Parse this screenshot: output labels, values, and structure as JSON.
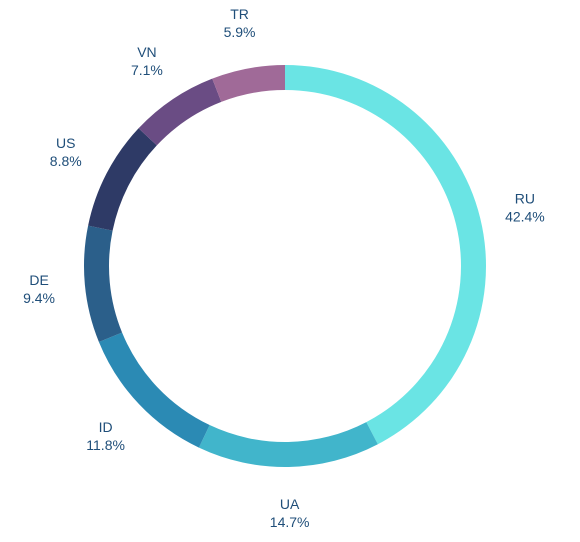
{
  "chart_data": {
    "type": "pie",
    "style": "donut",
    "title": "",
    "categories": [
      "RU",
      "UA",
      "ID",
      "DE",
      "US",
      "VN",
      "TR"
    ],
    "values": [
      42.4,
      14.7,
      11.8,
      9.4,
      8.8,
      7.1,
      5.9
    ],
    "value_labels": [
      "42.4%",
      "14.7%",
      "11.8%",
      "9.4%",
      "8.8%",
      "7.1%",
      "5.9%"
    ],
    "colors": [
      "#6ae4e4",
      "#41b5cb",
      "#2b8ab4",
      "#2b5f8a",
      "#2e3a66",
      "#6a4c84",
      "#a06a98"
    ],
    "label_color": "#1f4e79",
    "start_angle": "top (12 o'clock)",
    "direction": "clockwise"
  }
}
